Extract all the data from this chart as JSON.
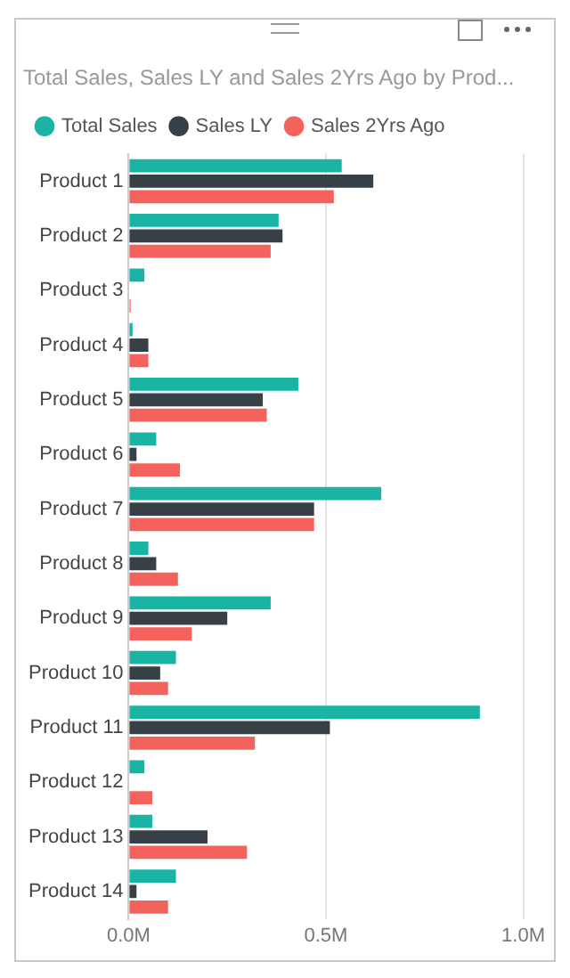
{
  "chart_data": {
    "type": "bar",
    "orientation": "horizontal",
    "title": "Total Sales, Sales LY and Sales 2Yrs Ago by Prod...",
    "categories": [
      "Product 1",
      "Product 2",
      "Product 3",
      "Product 4",
      "Product 5",
      "Product 6",
      "Product 7",
      "Product 8",
      "Product 9",
      "Product 10",
      "Product 11",
      "Product 12",
      "Product 13",
      "Product 14"
    ],
    "series": [
      {
        "name": "Total Sales",
        "color": "#1ab4a4",
        "values": [
          0.54,
          0.38,
          0.04,
          0.01,
          0.43,
          0.07,
          0.64,
          0.05,
          0.36,
          0.12,
          0.89,
          0.04,
          0.06,
          0.12
        ]
      },
      {
        "name": "Sales LY",
        "color": "#374046",
        "values": [
          0.62,
          0.39,
          null,
          0.05,
          0.34,
          0.02,
          0.47,
          0.07,
          0.25,
          0.08,
          0.51,
          0,
          0.2,
          0.02
        ]
      },
      {
        "name": "Sales 2Yrs Ago",
        "color": "#f4625e",
        "values": [
          0.52,
          0.36,
          0.005,
          0.05,
          0.35,
          0.13,
          0.47,
          0.125,
          0.16,
          0.1,
          0.32,
          0.06,
          0.3,
          0.1
        ]
      }
    ],
    "xlim": [
      0,
      1.0
    ],
    "xticks": [
      {
        "value": 0,
        "label": "0.0M"
      },
      {
        "value": 0.5,
        "label": "0.5M"
      },
      {
        "value": 1.0,
        "label": "1.0M"
      }
    ],
    "grid": "x",
    "legend": "top left"
  }
}
